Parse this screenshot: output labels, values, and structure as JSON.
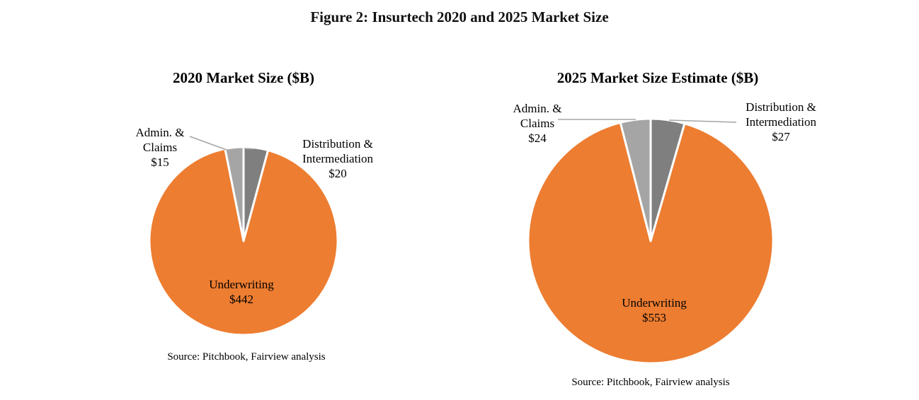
{
  "figure_title": "Figure 2: Insurtech 2020 and 2025 Market Size",
  "colors": {
    "underwriting": "#ED7D31",
    "distribution": "#7F7F7F",
    "admin": "#A5A5A5",
    "leader": "#A5A5A5"
  },
  "chart_data": [
    {
      "type": "pie",
      "title": "2020 Market Size ($B)",
      "source": "Source: Pitchbook, Fairview analysis",
      "slices": [
        {
          "key": "distribution",
          "label_lines": [
            "Distribution &",
            "Intermediation",
            "$20"
          ],
          "value": 20
        },
        {
          "key": "underwriting",
          "label_lines": [
            "Underwriting",
            "$442"
          ],
          "value": 442
        },
        {
          "key": "admin",
          "label_lines": [
            "Admin. &",
            "Claims",
            "$15"
          ],
          "value": 15
        }
      ]
    },
    {
      "type": "pie",
      "title": "2025 Market Size Estimate ($B)",
      "source": "Source: Pitchbook, Fairview analysis",
      "slices": [
        {
          "key": "distribution",
          "label_lines": [
            "Distribution &",
            "Intermediation",
            "$27"
          ],
          "value": 27
        },
        {
          "key": "underwriting",
          "label_lines": [
            "Underwriting",
            "$553"
          ],
          "value": 553
        },
        {
          "key": "admin",
          "label_lines": [
            "Admin. &",
            "Claims",
            "$24"
          ],
          "value": 24
        }
      ]
    }
  ]
}
